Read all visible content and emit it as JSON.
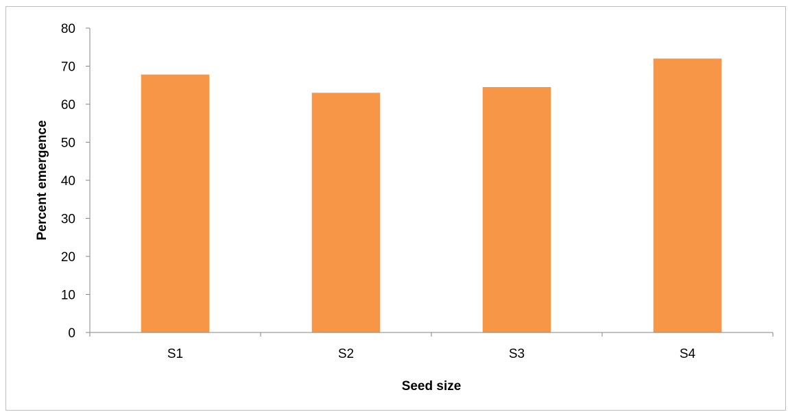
{
  "chart_data": {
    "type": "bar",
    "categories": [
      "S1",
      "S2",
      "S3",
      "S4"
    ],
    "values": [
      67.8,
      63.0,
      64.5,
      72.0
    ],
    "xlabel": "Seed size",
    "ylabel": "Percent emergence",
    "ylim": [
      0,
      80
    ],
    "yticks": [
      0,
      10,
      20,
      30,
      40,
      50,
      60,
      70,
      80
    ],
    "grid": false,
    "legend": false,
    "bar_color": "#F79646",
    "axis_color": "#868686"
  }
}
